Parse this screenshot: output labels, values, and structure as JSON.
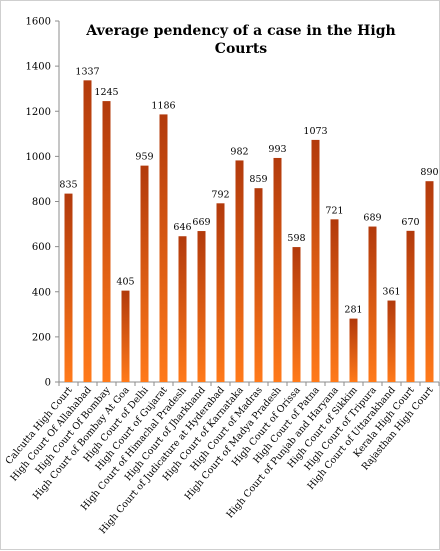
{
  "chart_data": {
    "type": "bar",
    "title_lines": [
      "Average pendency of a case in the High",
      "Courts"
    ],
    "xlabel": "",
    "ylabel": "",
    "ylim": [
      0,
      1600
    ],
    "yticks": [
      0,
      200,
      400,
      600,
      800,
      1000,
      1200,
      1400,
      1600
    ],
    "grid": false,
    "categories": [
      "Calcutta High Court",
      "High Court Of Allahabad",
      "High Court Of Bombay",
      "High Court of Bombay At Goa",
      "High Court of Delhi",
      "High Court of Gujarat",
      "High Court of Himachal Pradesh",
      "High Court of Jharkhand",
      "High Court of Judicature at Hyderabad",
      "High Court of Karnataka",
      "High Court of Madras",
      "High Court of Madya Pradesh",
      "High Court of Orissa",
      "High Court of Patna",
      "High Court of Punjab and Haryana",
      "High Court of Sikkim",
      "High Court of Tripura",
      "High Court of Uttarakhand",
      "Kerala High Court",
      "Rajasthan High Court"
    ],
    "values": [
      835,
      1337,
      1245,
      405,
      959,
      1186,
      646,
      669,
      792,
      982,
      859,
      993,
      598,
      1073,
      721,
      281,
      689,
      361,
      670,
      890
    ],
    "colors": {
      "bar_top": "#b23a0c",
      "bar_bottom": "#ff7a1a",
      "axis": "#8c8c8c"
    }
  }
}
